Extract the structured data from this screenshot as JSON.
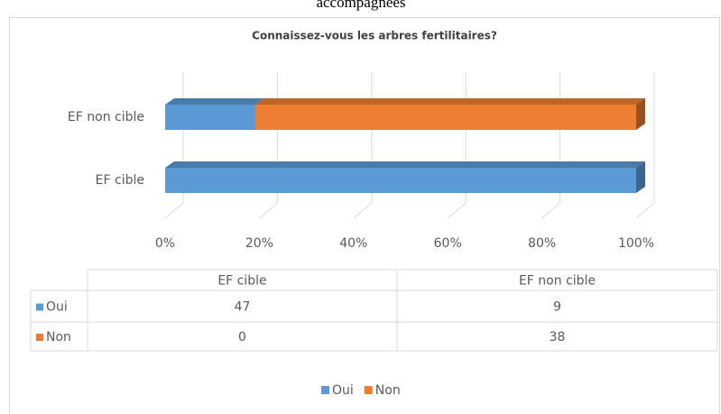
{
  "page_caption": "accompagnées",
  "chart_data": {
    "type": "bar",
    "orientation": "horizontal",
    "stacking": "percent",
    "style": "3d",
    "title": "Connaissez-vous les arbres fertilitaires?",
    "categories": [
      "EF cible",
      "EF non cible"
    ],
    "series": [
      {
        "name": "Oui",
        "color": "#5b9bd5",
        "values": [
          47,
          9
        ]
      },
      {
        "name": "Non",
        "color": "#ed7d31",
        "values": [
          0,
          38
        ]
      }
    ],
    "xlim": [
      0,
      100
    ],
    "xticks": [
      {
        "value": 0,
        "label": "0%"
      },
      {
        "value": 20,
        "label": "20%"
      },
      {
        "value": 40,
        "label": "40%"
      },
      {
        "value": 60,
        "label": "60%"
      },
      {
        "value": 80,
        "label": "80%"
      },
      {
        "value": 100,
        "label": "100%"
      }
    ],
    "grid": true,
    "data_table": true,
    "legend": "bottom"
  }
}
